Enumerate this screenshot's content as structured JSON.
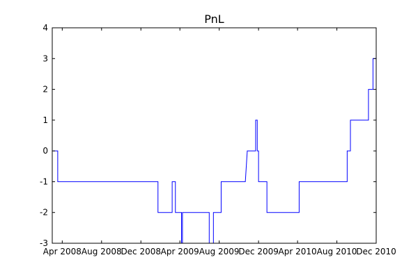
{
  "chart_data": {
    "type": "line",
    "title": "PnL",
    "xlabel": "",
    "ylabel": "",
    "x_tick_labels": [
      "Apr 2008",
      "Aug 2008",
      "Dec 2008",
      "Apr 2009",
      "Aug 2009",
      "Dec 2009",
      "Apr 2010",
      "Aug 2010",
      "Dec 2010"
    ],
    "x_tick_dates": [
      "2008-04-01",
      "2008-08-01",
      "2008-12-01",
      "2009-04-01",
      "2009-08-01",
      "2009-12-01",
      "2010-04-01",
      "2010-08-01",
      "2010-12-01"
    ],
    "xlim": [
      "2008-03-01",
      "2010-12-01"
    ],
    "y_ticks": [
      -3,
      -2,
      -1,
      0,
      1,
      2,
      3,
      4
    ],
    "ylim": [
      -3,
      4
    ],
    "grid": false,
    "series": [
      {
        "color": "#0000ff",
        "points": [
          [
            "2008-03-04",
            0
          ],
          [
            "2008-03-18",
            0
          ],
          [
            "2008-03-18",
            -1
          ],
          [
            "2009-01-23",
            -1
          ],
          [
            "2009-01-23",
            -2
          ],
          [
            "2009-03-08",
            -2
          ],
          [
            "2009-03-08",
            -1
          ],
          [
            "2009-03-18",
            -1
          ],
          [
            "2009-03-18",
            -2
          ],
          [
            "2009-04-06",
            -2
          ],
          [
            "2009-04-06",
            -3
          ],
          [
            "2009-04-09",
            -3
          ],
          [
            "2009-04-09",
            -2
          ],
          [
            "2009-07-01",
            -2
          ],
          [
            "2009-07-01",
            -3
          ],
          [
            "2009-07-14",
            -3
          ],
          [
            "2009-07-14",
            -2
          ],
          [
            "2009-08-07",
            -2
          ],
          [
            "2009-08-07",
            -1
          ],
          [
            "2009-10-21",
            -1
          ],
          [
            "2009-10-27",
            0
          ],
          [
            "2009-11-22",
            0
          ],
          [
            "2009-11-22",
            1
          ],
          [
            "2009-11-27",
            1
          ],
          [
            "2009-11-27",
            0
          ],
          [
            "2009-12-01",
            0
          ],
          [
            "2009-12-01",
            -1
          ],
          [
            "2009-12-27",
            -1
          ],
          [
            "2009-12-27",
            -2
          ],
          [
            "2010-04-06",
            -2
          ],
          [
            "2010-04-06",
            -1
          ],
          [
            "2010-09-02",
            -1
          ],
          [
            "2010-09-02",
            0
          ],
          [
            "2010-09-12",
            0
          ],
          [
            "2010-09-12",
            1
          ],
          [
            "2010-11-07",
            1
          ],
          [
            "2010-11-07",
            2
          ],
          [
            "2010-11-21",
            2
          ],
          [
            "2010-11-21",
            3
          ],
          [
            "2011-01-09",
            3
          ],
          [
            "2011-01-09",
            4
          ]
        ]
      }
    ]
  }
}
